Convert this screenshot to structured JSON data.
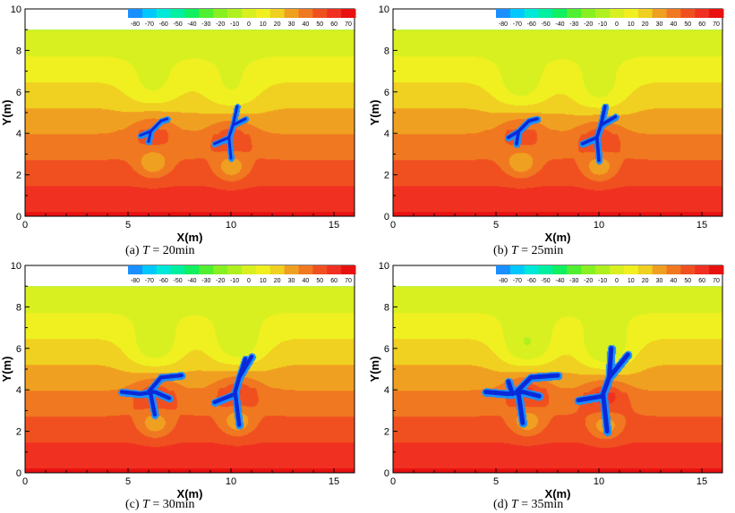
{
  "chart_data": {
    "type": "heatmap",
    "xlabel": "X(m)",
    "ylabel": "Y(m)",
    "xlim": [
      0,
      16
    ],
    "ylim": [
      0,
      10
    ],
    "x_ticks": [
      0,
      5,
      10,
      15
    ],
    "y_ticks": [
      0,
      2,
      4,
      6,
      8,
      10
    ],
    "domain_top_y": 9,
    "colorbar": {
      "placement": "top-right",
      "levels": [
        -80,
        -70,
        -60,
        -50,
        -40,
        -30,
        -20,
        -10,
        0,
        10,
        20,
        30,
        40,
        50,
        60,
        70
      ],
      "labels": [
        "-80",
        "-70",
        "-60",
        "-50",
        "-40",
        "-30",
        "-20",
        "-10",
        "0",
        "10",
        "20",
        "30",
        "40",
        "50",
        "60",
        "70"
      ],
      "colors": [
        "#1a8fff",
        "#00c8ff",
        "#00e8d8",
        "#00f0a0",
        "#10f060",
        "#50f030",
        "#88f020",
        "#b0f020",
        "#d8f020",
        "#f0f020",
        "#f0d020",
        "#f0a020",
        "#f07820",
        "#f05020",
        "#f03020",
        "#e81010"
      ]
    },
    "panels": [
      {
        "caption_prefix": "(a) ",
        "caption_var": "T",
        "caption_rest": " = 20min",
        "time_min": 20,
        "clusters": [
          {
            "center": [
              6.2,
              4.2
            ],
            "heat": 0.9,
            "paths": [
              [
                [
                  5.6,
                  3.9
                ],
                [
                  6.1,
                  4.1
                ],
                [
                  6.6,
                  4.6
                ],
                [
                  6.9,
                  4.7
                ]
              ],
              [
                [
                  6.1,
                  4.1
                ],
                [
                  6.0,
                  3.6
                ]
              ]
            ]
          },
          {
            "center": [
              10.0,
              4.0
            ],
            "heat": 1.0,
            "paths": [
              [
                [
                  10.3,
                  5.3
                ],
                [
                  10.1,
                  4.4
                ],
                [
                  9.9,
                  3.8
                ],
                [
                  10.0,
                  2.8
                ]
              ],
              [
                [
                  9.9,
                  3.8
                ],
                [
                  9.2,
                  3.5
                ]
              ],
              [
                [
                  10.1,
                  4.4
                ],
                [
                  10.7,
                  4.7
                ]
              ]
            ]
          }
        ]
      },
      {
        "caption_prefix": "(b) ",
        "caption_var": "T",
        "caption_rest": " = 25min",
        "time_min": 25,
        "clusters": [
          {
            "center": [
              6.2,
              4.2
            ],
            "heat": 0.95,
            "paths": [
              [
                [
                  5.6,
                  3.8
                ],
                [
                  6.1,
                  4.1
                ],
                [
                  6.6,
                  4.6
                ],
                [
                  7.0,
                  4.7
                ]
              ],
              [
                [
                  6.1,
                  4.1
                ],
                [
                  6.0,
                  3.5
                ]
              ]
            ]
          },
          {
            "center": [
              10.0,
              4.0
            ],
            "heat": 1.05,
            "paths": [
              [
                [
                  10.3,
                  5.3
                ],
                [
                  10.1,
                  4.4
                ],
                [
                  9.9,
                  3.8
                ],
                [
                  10.0,
                  2.7
                ]
              ],
              [
                [
                  9.9,
                  3.8
                ],
                [
                  9.2,
                  3.5
                ]
              ],
              [
                [
                  10.1,
                  4.4
                ],
                [
                  10.8,
                  4.8
                ]
              ]
            ]
          }
        ]
      },
      {
        "caption_prefix": "(c) ",
        "caption_var": "T",
        "caption_rest": " = 30min",
        "time_min": 30,
        "clusters": [
          {
            "center": [
              6.3,
              4.0
            ],
            "heat": 1.1,
            "paths": [
              [
                [
                  4.7,
                  3.9
                ],
                [
                  5.6,
                  3.8
                ],
                [
                  6.3,
                  3.9
                ],
                [
                  7.0,
                  3.6
                ]
              ],
              [
                [
                  6.0,
                  3.9
                ],
                [
                  6.6,
                  4.6
                ],
                [
                  7.6,
                  4.7
                ]
              ],
              [
                [
                  6.1,
                  3.8
                ],
                [
                  6.3,
                  2.8
                ]
              ]
            ]
          },
          {
            "center": [
              10.3,
              4.1
            ],
            "heat": 1.15,
            "paths": [
              [
                [
                  11.0,
                  5.6
                ],
                [
                  10.4,
                  4.6
                ],
                [
                  10.2,
                  3.9
                ],
                [
                  10.4,
                  2.3
                ]
              ],
              [
                [
                  10.2,
                  3.8
                ],
                [
                  9.2,
                  3.4
                ]
              ],
              [
                [
                  10.4,
                  4.6
                ],
                [
                  10.7,
                  5.5
                ]
              ]
            ]
          }
        ]
      },
      {
        "caption_prefix": "(d) ",
        "caption_var": "T",
        "caption_rest": " = 35min",
        "time_min": 35,
        "clusters": [
          {
            "center": [
              6.5,
              4.1
            ],
            "heat": 1.2,
            "paths": [
              [
                [
                  4.5,
                  3.9
                ],
                [
                  5.6,
                  3.8
                ],
                [
                  6.3,
                  3.9
                ],
                [
                  7.1,
                  3.7
                ]
              ],
              [
                [
                  6.0,
                  3.9
                ],
                [
                  6.7,
                  4.6
                ],
                [
                  8.0,
                  4.7
                ]
              ],
              [
                [
                  6.1,
                  3.8
                ],
                [
                  6.3,
                  2.4
                ]
              ],
              [
                [
                  5.8,
                  3.8
                ],
                [
                  5.6,
                  4.4
                ]
              ]
            ]
          },
          {
            "center": [
              10.3,
              3.9
            ],
            "heat": 1.25,
            "paths": [
              [
                [
                  11.4,
                  5.7
                ],
                [
                  10.5,
                  4.6
                ],
                [
                  10.2,
                  3.8
                ],
                [
                  10.4,
                  2.0
                ]
              ],
              [
                [
                  10.2,
                  3.7
                ],
                [
                  9.0,
                  3.5
                ]
              ],
              [
                [
                  10.5,
                  4.6
                ],
                [
                  10.6,
                  6.0
                ]
              ]
            ]
          }
        ]
      }
    ]
  }
}
